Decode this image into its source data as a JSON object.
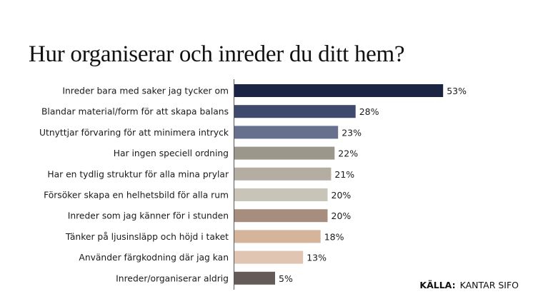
{
  "chart_data": {
    "type": "bar",
    "orientation": "horizontal",
    "title": "Hur organiserar och inreder du ditt hem?",
    "xlabel": "",
    "ylabel": "",
    "unit": "%",
    "grid": false,
    "legend": null,
    "categories": [
      "Inreder bara med saker jag tycker om",
      "Blandar material/form för att skapa balans",
      "Utnyttjar förvaring för att minimera intryck",
      "Har ingen speciell ordning",
      "Har en tydlig struktur för alla mina prylar",
      "Försöker skapa en helhetsbild för alla rum",
      "Inreder som jag känner för i stunden",
      "Tänker på ljusinsläpp och höjd i taket",
      "Använder färgkodning där jag kan",
      "Inreder/organiserar aldrig"
    ],
    "values": [
      53,
      28,
      23,
      22,
      21,
      20,
      20,
      18,
      13,
      5
    ],
    "value_labels": [
      "53%",
      "28%",
      "23%",
      "22%",
      "21%",
      "20%",
      "20%",
      "18%",
      "13%",
      "5%"
    ],
    "colors": [
      "#1b2543",
      "#3d4a6d",
      "#67718d",
      "#9c978b",
      "#b3aea1",
      "#c8c4b8",
      "#a68d7d",
      "#d4b49a",
      "#dfc5b2",
      "#645a57"
    ],
    "source_label": "KÄLLA:",
    "source": "KANTAR SIFO"
  }
}
